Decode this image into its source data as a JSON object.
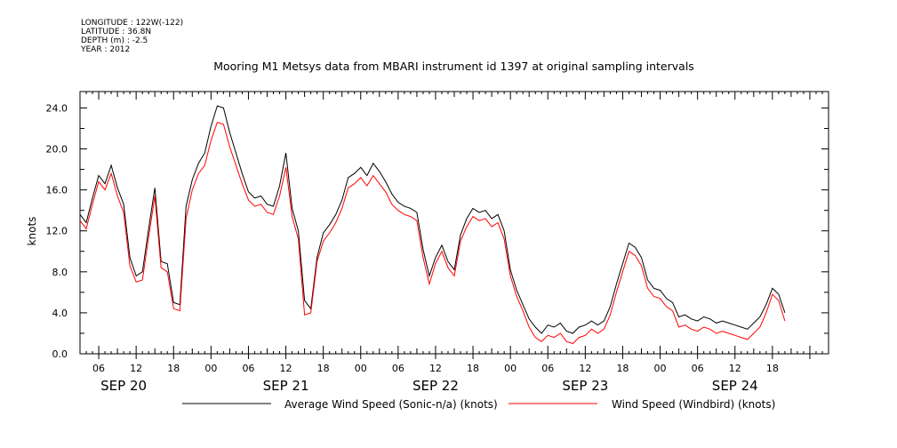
{
  "header": {
    "meta_lines": [
      "LONGITUDE : 122W(-122)",
      "LATITUDE : 36.8N",
      "DEPTH (m) : -2.5",
      "YEAR : 2012"
    ],
    "title": "Mooring M1 Metsys data from MBARI instrument id 1397 at original sampling intervals"
  },
  "chart_data": {
    "type": "line",
    "title": "Mooring M1 Metsys data from MBARI instrument id 1397 at original sampling intervals",
    "ylabel": "knots",
    "xlabel": "",
    "ylim": [
      0,
      25.6
    ],
    "xlim_hours_label": "SEP 20 03:00 to SEP 24 23:00",
    "y_ticks": [
      "0.0",
      "4.0",
      "8.0",
      "12.0",
      "16.0",
      "20.0",
      "24.0"
    ],
    "x_hour_ticks": [
      "06",
      "12",
      "18",
      "00",
      "06",
      "12",
      "18",
      "00",
      "06",
      "12",
      "18",
      "00",
      "06",
      "12",
      "18",
      "00",
      "06",
      "12",
      "18"
    ],
    "x_day_labels": [
      "SEP 20",
      "SEP 21",
      "SEP 22",
      "SEP 23",
      "SEP 24"
    ],
    "grid": false,
    "legend_position": "bottom",
    "series": [
      {
        "name": "Average Wind Speed (Sonic-n/a) (knots)",
        "color": "#000000",
        "x": [
          "SEP 20 03:00",
          "SEP 20 04:00",
          "SEP 20 05:00",
          "SEP 20 06:00",
          "SEP 20 07:00",
          "SEP 20 08:00",
          "SEP 20 09:00",
          "SEP 20 10:00",
          "SEP 20 11:00",
          "SEP 20 12:00",
          "SEP 20 13:00",
          "SEP 20 14:00",
          "SEP 20 15:00",
          "SEP 20 16:00",
          "SEP 20 17:00",
          "SEP 20 18:00",
          "SEP 20 19:00",
          "SEP 20 20:00",
          "SEP 20 21:00",
          "SEP 20 22:00",
          "SEP 20 23:00",
          "SEP 21 00:00",
          "SEP 21 01:00",
          "SEP 21 02:00",
          "SEP 21 03:00",
          "SEP 21 04:00",
          "SEP 21 05:00",
          "SEP 21 06:00",
          "SEP 21 07:00",
          "SEP 21 08:00",
          "SEP 21 09:00",
          "SEP 21 10:00",
          "SEP 21 11:00",
          "SEP 21 12:00",
          "SEP 21 13:00",
          "SEP 21 14:00",
          "SEP 21 15:00",
          "SEP 21 16:00",
          "SEP 21 17:00",
          "SEP 21 18:00",
          "SEP 21 19:00",
          "SEP 21 20:00",
          "SEP 21 21:00",
          "SEP 21 22:00",
          "SEP 21 23:00",
          "SEP 22 00:00",
          "SEP 22 01:00",
          "SEP 22 02:00",
          "SEP 22 03:00",
          "SEP 22 04:00",
          "SEP 22 05:00",
          "SEP 22 06:00",
          "SEP 22 07:00",
          "SEP 22 08:00",
          "SEP 22 09:00",
          "SEP 22 10:00",
          "SEP 22 11:00",
          "SEP 22 12:00",
          "SEP 22 13:00",
          "SEP 22 14:00",
          "SEP 22 15:00",
          "SEP 22 16:00",
          "SEP 22 17:00",
          "SEP 22 18:00",
          "SEP 22 19:00",
          "SEP 22 20:00",
          "SEP 22 21:00",
          "SEP 22 22:00",
          "SEP 22 23:00",
          "SEP 23 00:00",
          "SEP 23 01:00",
          "SEP 23 02:00",
          "SEP 23 03:00",
          "SEP 23 04:00",
          "SEP 23 05:00",
          "SEP 23 06:00",
          "SEP 23 07:00",
          "SEP 23 08:00",
          "SEP 23 09:00",
          "SEP 23 10:00",
          "SEP 23 11:00",
          "SEP 23 12:00",
          "SEP 23 13:00",
          "SEP 23 14:00",
          "SEP 23 15:00",
          "SEP 23 16:00",
          "SEP 23 17:00",
          "SEP 23 18:00",
          "SEP 23 19:00",
          "SEP 23 20:00",
          "SEP 23 21:00",
          "SEP 23 22:00",
          "SEP 23 23:00",
          "SEP 24 00:00",
          "SEP 24 01:00",
          "SEP 24 02:00",
          "SEP 24 03:00",
          "SEP 24 04:00",
          "SEP 24 05:00",
          "SEP 24 06:00",
          "SEP 24 07:00",
          "SEP 24 08:00",
          "SEP 24 09:00",
          "SEP 24 10:00",
          "SEP 24 11:00",
          "SEP 24 12:00",
          "SEP 24 13:00",
          "SEP 24 14:00",
          "SEP 24 15:00",
          "SEP 24 16:00",
          "SEP 24 17:00",
          "SEP 24 18:00",
          "SEP 24 19:00",
          "SEP 24 20:00"
        ],
        "values": [
          13.6,
          12.8,
          15.2,
          17.4,
          16.6,
          18.4,
          16.2,
          14.6,
          9.4,
          7.6,
          8.0,
          12.2,
          16.2,
          9.0,
          8.8,
          5.0,
          4.8,
          14.4,
          17.0,
          18.6,
          19.6,
          22.2,
          24.2,
          24.0,
          21.6,
          19.6,
          17.6,
          15.8,
          15.2,
          15.4,
          14.6,
          14.4,
          16.4,
          19.6,
          14.2,
          12.0,
          5.2,
          4.4,
          9.4,
          11.8,
          12.6,
          13.6,
          15.0,
          17.2,
          17.6,
          18.2,
          17.4,
          18.6,
          17.8,
          16.8,
          15.6,
          14.8,
          14.4,
          14.2,
          13.8,
          10.2,
          7.6,
          9.4,
          10.6,
          9.0,
          8.2,
          11.6,
          13.2,
          14.2,
          13.8,
          14.0,
          13.2,
          13.6,
          12.0,
          8.2,
          6.2,
          4.8,
          3.4,
          2.6,
          2.0,
          2.8,
          2.6,
          3.0,
          2.2,
          2.0,
          2.6,
          2.8,
          3.2,
          2.8,
          3.2,
          4.6,
          6.8,
          8.8,
          10.8,
          10.4,
          9.4,
          7.2,
          6.4,
          6.2,
          5.4,
          5.0,
          3.6,
          3.8,
          3.4,
          3.2,
          3.6,
          3.4,
          3.0,
          3.2,
          3.0,
          2.8,
          2.6,
          2.4,
          3.0,
          3.6,
          4.8,
          6.4,
          5.8,
          4.0
        ],
        "ylabel": "knots"
      },
      {
        "name": "Wind Speed (Windbird) (knots)",
        "color": "#ff0000",
        "x": [
          "SEP 20 03:00",
          "SEP 20 04:00",
          "SEP 20 05:00",
          "SEP 20 06:00",
          "SEP 20 07:00",
          "SEP 20 08:00",
          "SEP 20 09:00",
          "SEP 20 10:00",
          "SEP 20 11:00",
          "SEP 20 12:00",
          "SEP 20 13:00",
          "SEP 20 14:00",
          "SEP 20 15:00",
          "SEP 20 16:00",
          "SEP 20 17:00",
          "SEP 20 18:00",
          "SEP 20 19:00",
          "SEP 20 20:00",
          "SEP 20 21:00",
          "SEP 20 22:00",
          "SEP 20 23:00",
          "SEP 21 00:00",
          "SEP 21 01:00",
          "SEP 21 02:00",
          "SEP 21 03:00",
          "SEP 21 04:00",
          "SEP 21 05:00",
          "SEP 21 06:00",
          "SEP 21 07:00",
          "SEP 21 08:00",
          "SEP 21 09:00",
          "SEP 21 10:00",
          "SEP 21 11:00",
          "SEP 21 12:00",
          "SEP 21 13:00",
          "SEP 21 14:00",
          "SEP 21 15:00",
          "SEP 21 16:00",
          "SEP 21 17:00",
          "SEP 21 18:00",
          "SEP 21 19:00",
          "SEP 21 20:00",
          "SEP 21 21:00",
          "SEP 21 22:00",
          "SEP 21 23:00",
          "SEP 22 00:00",
          "SEP 22 01:00",
          "SEP 22 02:00",
          "SEP 22 03:00",
          "SEP 22 04:00",
          "SEP 22 05:00",
          "SEP 22 06:00",
          "SEP 22 07:00",
          "SEP 22 08:00",
          "SEP 22 09:00",
          "SEP 22 10:00",
          "SEP 22 11:00",
          "SEP 22 12:00",
          "SEP 22 13:00",
          "SEP 22 14:00",
          "SEP 22 15:00",
          "SEP 22 16:00",
          "SEP 22 17:00",
          "SEP 22 18:00",
          "SEP 22 19:00",
          "SEP 22 20:00",
          "SEP 22 21:00",
          "SEP 22 22:00",
          "SEP 22 23:00",
          "SEP 23 00:00",
          "SEP 23 01:00",
          "SEP 23 02:00",
          "SEP 23 03:00",
          "SEP 23 04:00",
          "SEP 23 05:00",
          "SEP 23 06:00",
          "SEP 23 07:00",
          "SEP 23 08:00",
          "SEP 23 09:00",
          "SEP 23 10:00",
          "SEP 23 11:00",
          "SEP 23 12:00",
          "SEP 23 13:00",
          "SEP 23 14:00",
          "SEP 23 15:00",
          "SEP 23 16:00",
          "SEP 23 17:00",
          "SEP 23 18:00",
          "SEP 23 19:00",
          "SEP 23 20:00",
          "SEP 23 21:00",
          "SEP 23 22:00",
          "SEP 23 23:00",
          "SEP 24 00:00",
          "SEP 24 01:00",
          "SEP 24 02:00",
          "SEP 24 03:00",
          "SEP 24 04:00",
          "SEP 24 05:00",
          "SEP 24 06:00",
          "SEP 24 07:00",
          "SEP 24 08:00",
          "SEP 24 09:00",
          "SEP 24 10:00",
          "SEP 24 11:00",
          "SEP 24 12:00",
          "SEP 24 13:00",
          "SEP 24 14:00",
          "SEP 24 15:00",
          "SEP 24 16:00",
          "SEP 24 17:00",
          "SEP 24 18:00",
          "SEP 24 19:00",
          "SEP 24 20:00"
        ],
        "values": [
          13.0,
          12.2,
          14.6,
          16.8,
          16.0,
          17.6,
          15.4,
          13.8,
          8.6,
          7.0,
          7.2,
          11.4,
          15.4,
          8.4,
          8.0,
          4.4,
          4.2,
          13.2,
          16.0,
          17.6,
          18.4,
          20.8,
          22.6,
          22.4,
          20.2,
          18.4,
          16.6,
          15.0,
          14.4,
          14.6,
          13.8,
          13.6,
          15.4,
          18.2,
          13.4,
          11.2,
          3.8,
          4.0,
          9.0,
          11.0,
          11.8,
          12.8,
          14.2,
          16.2,
          16.6,
          17.2,
          16.4,
          17.4,
          16.6,
          15.8,
          14.6,
          14.0,
          13.6,
          13.4,
          13.0,
          9.4,
          6.8,
          8.8,
          10.0,
          8.4,
          7.6,
          11.0,
          12.4,
          13.4,
          13.0,
          13.2,
          12.4,
          12.8,
          11.2,
          7.6,
          5.6,
          4.2,
          2.6,
          1.6,
          1.2,
          1.8,
          1.6,
          2.0,
          1.2,
          1.0,
          1.6,
          1.8,
          2.4,
          2.0,
          2.4,
          3.8,
          6.0,
          8.0,
          10.0,
          9.6,
          8.6,
          6.4,
          5.6,
          5.4,
          4.6,
          4.2,
          2.6,
          2.8,
          2.4,
          2.2,
          2.6,
          2.4,
          2.0,
          2.2,
          2.0,
          1.8,
          1.6,
          1.4,
          2.0,
          2.6,
          4.0,
          5.8,
          5.2,
          3.2
        ],
        "ylabel": "knots"
      }
    ]
  }
}
